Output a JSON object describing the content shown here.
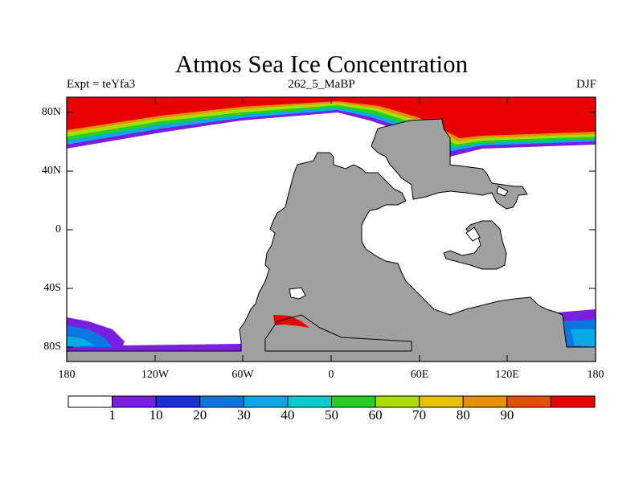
{
  "title": "Atmos Sea Ice Concentration",
  "subtitle_left": "Expt = teYfa3",
  "subtitle_center": "262_5_MaBP",
  "subtitle_right": "DJF",
  "y_axis_labels": [
    "80N",
    "40N",
    "0",
    "40S",
    "80S"
  ],
  "x_axis_labels": [
    "180",
    "120W",
    "60W",
    "0",
    "60E",
    "120E",
    "180"
  ],
  "colorbar": {
    "labels": [
      "1",
      "10",
      "20",
      "30",
      "40",
      "50",
      "60",
      "70",
      "80",
      "90"
    ],
    "colors": [
      "#ffffff",
      "#7a1fe0",
      "#1b2fd9",
      "#0a78e0",
      "#0aa8e6",
      "#00cccc",
      "#22d022",
      "#aadd00",
      "#e8c200",
      "#e89000",
      "#e05000",
      "#e80000"
    ]
  },
  "map_colors": {
    "land": "#a0a0a0",
    "ice_high": "#e80000",
    "ocean": "#ffffff"
  }
}
